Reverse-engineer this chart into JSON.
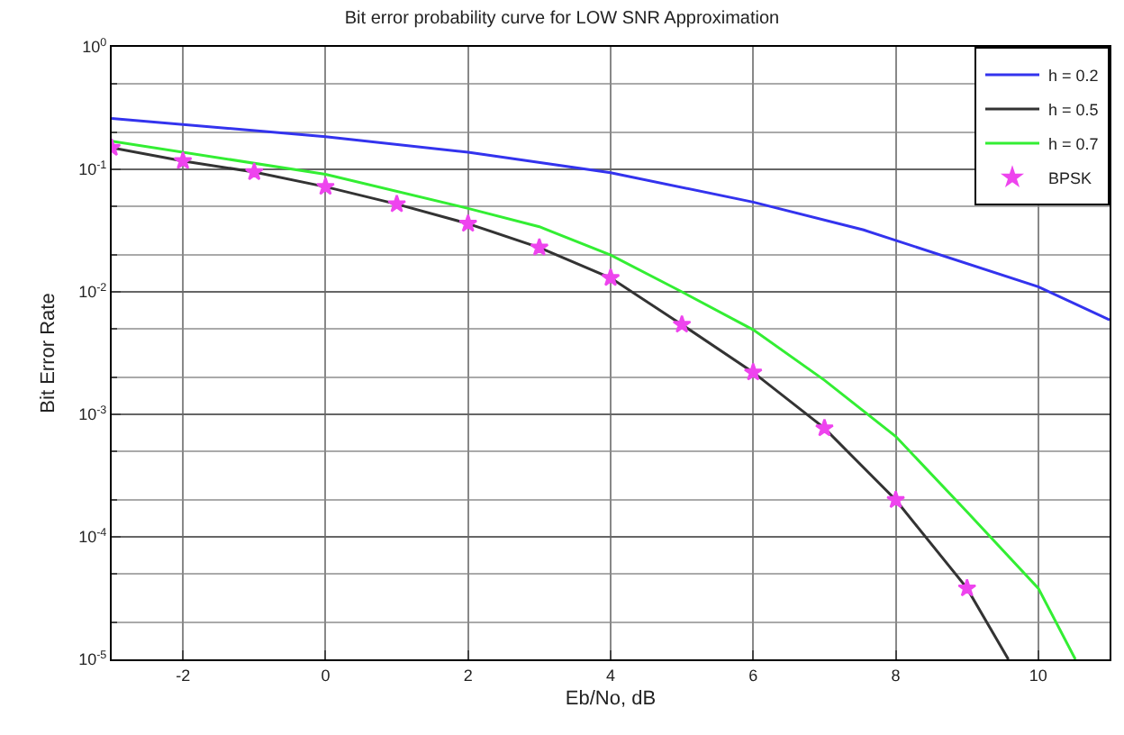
{
  "chart_data": {
    "type": "line",
    "title": "Bit error probability curve for LOW SNR Approximation",
    "xlabel": "Eb/No, dB",
    "ylabel": "Bit Error Rate",
    "log": "y",
    "grid": true,
    "legend": "top right",
    "line_style": "solid",
    "xlim": [
      -3,
      11
    ],
    "xticks": [
      -2,
      0,
      2,
      4,
      6,
      8,
      10
    ],
    "ylim": [
      1e-05,
      1
    ],
    "yticks": [
      {
        "value": 1,
        "label": "10$^{0}$"
      },
      {
        "value": 0.1,
        "label": "10$^{-1}$"
      },
      {
        "value": 0.01,
        "label": "10$^{-2}$"
      },
      {
        "value": 0.001,
        "label": "10$^{-3}$"
      },
      {
        "value": 0.0001,
        "label": "10$^{-4}$"
      },
      {
        "value": 1e-05,
        "label": "10$^{-5}$"
      }
    ],
    "series": [
      {
        "name": "h = 0.2",
        "color": "#3333ee",
        "marker": "none",
        "x": [
          -3,
          0,
          2,
          4,
          6,
          7.55,
          10,
          11
        ],
        "values": [
          0.26,
          0.185,
          0.138,
          0.094,
          0.054,
          0.032,
          0.011,
          0.0059
        ]
      },
      {
        "name": "h = 0.5",
        "color": "#333333",
        "marker": "none",
        "x": [
          -3,
          -2,
          -1,
          0,
          1,
          2,
          3,
          4,
          5,
          6,
          7,
          8,
          9,
          9.58
        ],
        "values": [
          0.15,
          0.117,
          0.095,
          0.072,
          0.052,
          0.036,
          0.023,
          0.013,
          0.0054,
          0.0022,
          0.00077,
          0.0002,
          3.8e-05,
          1e-05
        ]
      },
      {
        "name": "h = 0.7",
        "color": "#33ee33",
        "marker": "none",
        "x": [
          -3,
          0,
          2,
          3,
          4,
          5,
          6,
          7,
          8,
          9,
          10,
          10.52
        ],
        "values": [
          0.17,
          0.091,
          0.048,
          0.034,
          0.02,
          0.01,
          0.0049,
          0.0019,
          0.00066,
          0.00016,
          3.8e-05,
          1e-05
        ]
      },
      {
        "name": "BPSK",
        "type": "scatter",
        "color": "#ee44ee",
        "marker": "star",
        "x": [
          -3,
          -2,
          -1,
          0,
          1,
          2,
          3,
          4,
          5,
          6,
          7,
          8,
          9
        ],
        "values": [
          0.15,
          0.117,
          0.095,
          0.072,
          0.052,
          0.036,
          0.023,
          0.013,
          0.0054,
          0.0022,
          0.00077,
          0.0002,
          3.8e-05
        ]
      }
    ]
  }
}
